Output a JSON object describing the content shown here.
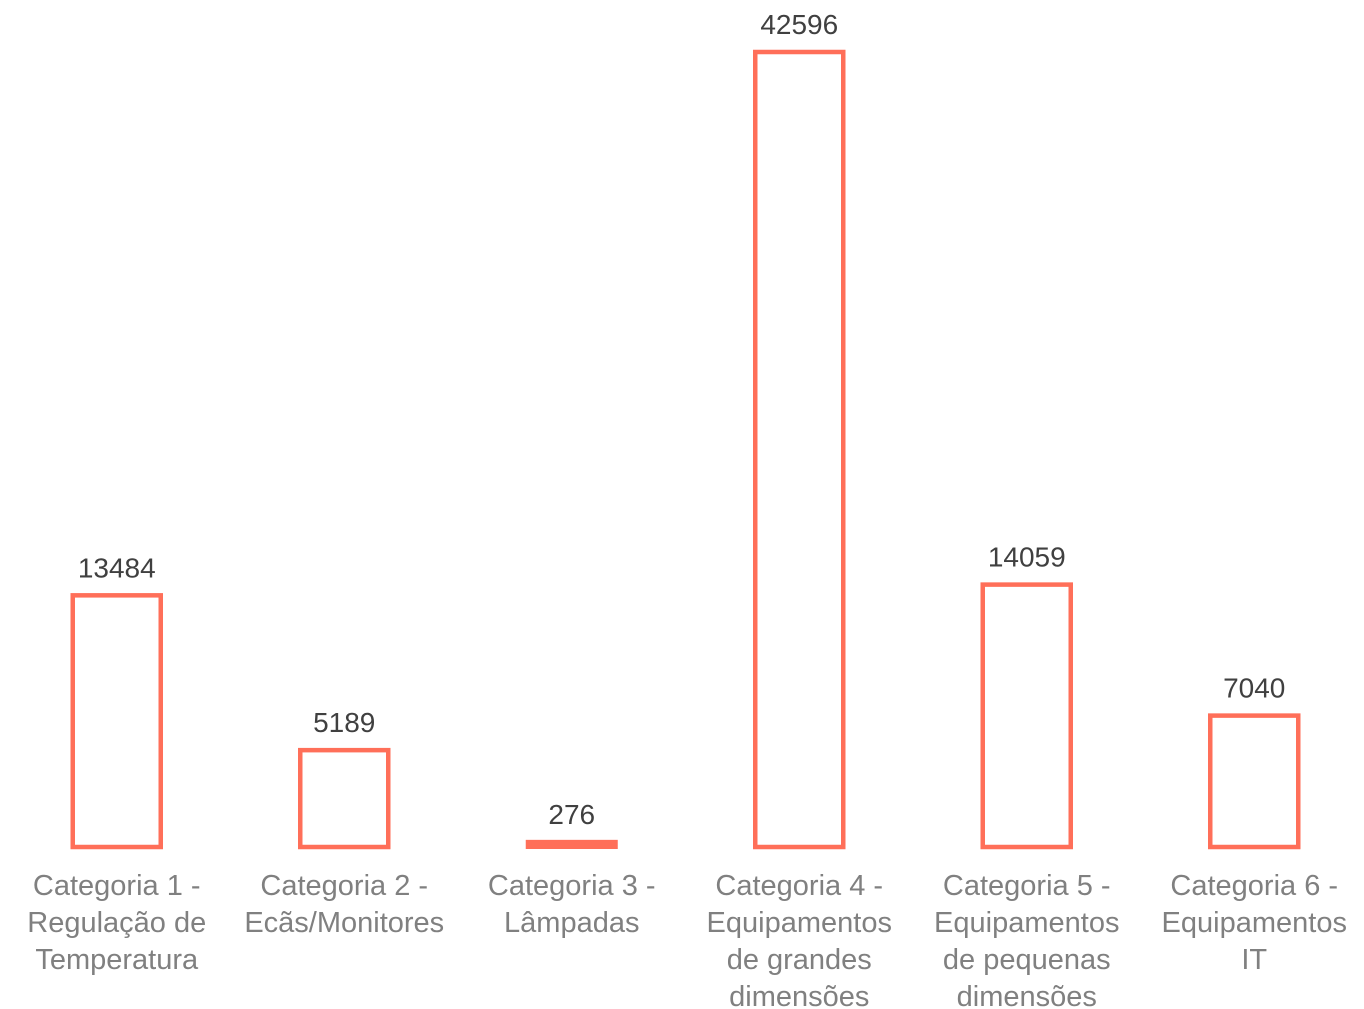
{
  "chart_data": {
    "type": "bar",
    "categories": [
      [
        "Categoria 1 -",
        "Regulação de",
        "Temperatura"
      ],
      [
        "Categoria 2 -",
        "Ecãs/Monitores"
      ],
      [
        "Categoria 3 -",
        "Lâmpadas"
      ],
      [
        "Categoria 4 -",
        "Equipamentos",
        "de grandes",
        "dimensões"
      ],
      [
        "Categoria 5 -",
        "Equipamentos",
        "de pequenas",
        "dimensões"
      ],
      [
        "Categoria 6 -",
        "Equipamentos",
        "IT"
      ]
    ],
    "values": [
      13484,
      5189,
      276,
      42596,
      14059,
      7040
    ],
    "data_labels": [
      "13484",
      "5189",
      "276",
      "42596",
      "14059",
      "7040"
    ],
    "ylim": [
      0,
      42596
    ],
    "grid": false,
    "legend": "none",
    "bar_style": "outline",
    "bar_color": "#FF6F59"
  }
}
